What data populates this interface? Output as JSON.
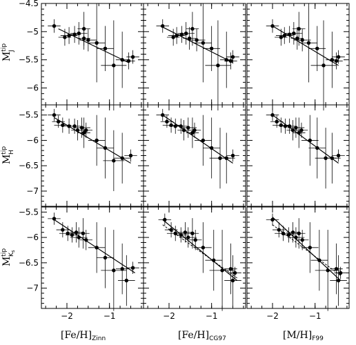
{
  "figure": {
    "x_label_sub_text": [
      "Zinn",
      "CG97",
      "F99"
    ],
    "y_label_sup": "tip",
    "x_ticks": [
      -2,
      -1
    ],
    "y_axis_min": -7.5,
    "y_axis_max": -4.5
  },
  "chart_data": [
    {
      "type": "scatter",
      "row": 0,
      "col": 0,
      "xlabel": "[Fe/H]Zinn",
      "ylabel": "M_J^tip",
      "xlim": [
        -2.6,
        -0.2
      ],
      "ylim": [
        -6.3,
        -4.5
      ],
      "y_ticks": [
        -4.5,
        -5,
        -5.5,
        -6
      ],
      "fit": [
        [
          -2.2,
          -4.95
        ],
        [
          -0.55,
          -5.55
        ]
      ],
      "points": [
        {
          "x": -2.3,
          "y": -4.9,
          "xerr": 0.15,
          "yerr": 0.12
        },
        {
          "x": -2.05,
          "y": -5.1,
          "xerr": 0.15,
          "yerr": 0.15
        },
        {
          "x": -1.95,
          "y": -5.07,
          "xerr": 0.2,
          "yerr": 0.15
        },
        {
          "x": -1.82,
          "y": -5.05,
          "xerr": 0.15,
          "yerr": 0.15
        },
        {
          "x": -1.72,
          "y": -5.03,
          "xerr": 0.2,
          "yerr": 0.2
        },
        {
          "x": -1.6,
          "y": -5.12,
          "xerr": 0.15,
          "yerr": 0.2
        },
        {
          "x": -1.6,
          "y": -4.95,
          "xerr": 0.15,
          "yerr": 0.3
        },
        {
          "x": -1.5,
          "y": -5.15,
          "xerr": 0.2,
          "yerr": 0.2
        },
        {
          "x": -1.3,
          "y": -5.2,
          "xerr": 0.2,
          "yerr": 0.7
        },
        {
          "x": -1.1,
          "y": -5.3,
          "xerr": 0.2,
          "yerr": 0.4
        },
        {
          "x": -0.9,
          "y": -5.6,
          "xerr": 0.3,
          "yerr": 0.8
        },
        {
          "x": -0.7,
          "y": -5.5,
          "xerr": 0.15,
          "yerr": 0.5
        },
        {
          "x": -0.55,
          "y": -5.52,
          "xerr": 0.15,
          "yerr": 0.15
        },
        {
          "x": -0.45,
          "y": -5.45,
          "xerr": 0.15,
          "yerr": 0.12
        }
      ]
    },
    {
      "type": "scatter",
      "row": 0,
      "col": 1,
      "xlabel": "[Fe/H]CG97",
      "ylabel": "M_J^tip",
      "xlim": [
        -2.6,
        -0.2
      ],
      "ylim": [
        -6.3,
        -4.5
      ],
      "y_ticks": [
        -4.5,
        -5,
        -5.5,
        -6
      ],
      "fit": [
        [
          -2.2,
          -4.9
        ],
        [
          -0.5,
          -5.55
        ]
      ],
      "points": [
        {
          "x": -2.15,
          "y": -4.9,
          "xerr": 0.15,
          "yerr": 0.12
        },
        {
          "x": -1.9,
          "y": -5.1,
          "xerr": 0.15,
          "yerr": 0.15
        },
        {
          "x": -1.82,
          "y": -5.07,
          "xerr": 0.2,
          "yerr": 0.15
        },
        {
          "x": -1.7,
          "y": -5.05,
          "xerr": 0.15,
          "yerr": 0.15
        },
        {
          "x": -1.6,
          "y": -5.03,
          "xerr": 0.2,
          "yerr": 0.2
        },
        {
          "x": -1.52,
          "y": -5.12,
          "xerr": 0.15,
          "yerr": 0.2
        },
        {
          "x": -1.45,
          "y": -4.95,
          "xerr": 0.15,
          "yerr": 0.3
        },
        {
          "x": -1.35,
          "y": -5.15,
          "xerr": 0.2,
          "yerr": 0.2
        },
        {
          "x": -1.2,
          "y": -5.2,
          "xerr": 0.2,
          "yerr": 0.7
        },
        {
          "x": -1.0,
          "y": -5.3,
          "xerr": 0.2,
          "yerr": 0.4
        },
        {
          "x": -0.85,
          "y": -5.6,
          "xerr": 0.3,
          "yerr": 0.8
        },
        {
          "x": -0.65,
          "y": -5.5,
          "xerr": 0.15,
          "yerr": 0.5
        },
        {
          "x": -0.55,
          "y": -5.52,
          "xerr": 0.15,
          "yerr": 0.15
        },
        {
          "x": -0.5,
          "y": -5.45,
          "xerr": 0.15,
          "yerr": 0.12
        }
      ]
    },
    {
      "type": "scatter",
      "row": 0,
      "col": 2,
      "xlabel": "[M/H]F99",
      "ylabel": "M_J^tip",
      "xlim": [
        -2.6,
        -0.2
      ],
      "ylim": [
        -6.3,
        -4.5
      ],
      "y_ticks": [
        -4.5,
        -5,
        -5.5,
        -6
      ],
      "fit": [
        [
          -2.0,
          -4.9
        ],
        [
          -0.45,
          -5.6
        ]
      ],
      "points": [
        {
          "x": -2.0,
          "y": -4.9,
          "xerr": 0.15,
          "yerr": 0.12
        },
        {
          "x": -1.8,
          "y": -5.1,
          "xerr": 0.15,
          "yerr": 0.15
        },
        {
          "x": -1.72,
          "y": -5.07,
          "xerr": 0.2,
          "yerr": 0.15
        },
        {
          "x": -1.6,
          "y": -5.05,
          "xerr": 0.15,
          "yerr": 0.15
        },
        {
          "x": -1.5,
          "y": -5.03,
          "xerr": 0.2,
          "yerr": 0.2
        },
        {
          "x": -1.42,
          "y": -5.12,
          "xerr": 0.15,
          "yerr": 0.2
        },
        {
          "x": -1.38,
          "y": -4.95,
          "xerr": 0.15,
          "yerr": 0.3
        },
        {
          "x": -1.3,
          "y": -5.15,
          "xerr": 0.2,
          "yerr": 0.2
        },
        {
          "x": -1.15,
          "y": -5.2,
          "xerr": 0.2,
          "yerr": 0.7
        },
        {
          "x": -0.95,
          "y": -5.3,
          "xerr": 0.2,
          "yerr": 0.4
        },
        {
          "x": -0.8,
          "y": -5.6,
          "xerr": 0.3,
          "yerr": 0.8
        },
        {
          "x": -0.6,
          "y": -5.5,
          "xerr": 0.15,
          "yerr": 0.5
        },
        {
          "x": -0.5,
          "y": -5.52,
          "xerr": 0.15,
          "yerr": 0.15
        },
        {
          "x": -0.45,
          "y": -5.45,
          "xerr": 0.15,
          "yerr": 0.12
        }
      ]
    },
    {
      "type": "scatter",
      "row": 1,
      "col": 0,
      "xlabel": "[Fe/H]Zinn",
      "ylabel": "M_H^tip",
      "xlim": [
        -2.6,
        -0.2
      ],
      "ylim": [
        -7.3,
        -5.3
      ],
      "y_ticks": [
        -5.5,
        -6,
        -6.5,
        -7
      ],
      "fit": [
        [
          -2.3,
          -5.55
        ],
        [
          -0.5,
          -6.45
        ]
      ],
      "points": [
        {
          "x": -2.3,
          "y": -5.5,
          "xerr": 0.15,
          "yerr": 0.12
        },
        {
          "x": -2.2,
          "y": -5.63,
          "xerr": 0.15,
          "yerr": 0.12
        },
        {
          "x": -2.1,
          "y": -5.7,
          "xerr": 0.2,
          "yerr": 0.15
        },
        {
          "x": -1.95,
          "y": -5.72,
          "xerr": 0.15,
          "yerr": 0.15
        },
        {
          "x": -1.82,
          "y": -5.72,
          "xerr": 0.15,
          "yerr": 0.15
        },
        {
          "x": -1.75,
          "y": -5.8,
          "xerr": 0.15,
          "yerr": 0.2
        },
        {
          "x": -1.65,
          "y": -5.75,
          "xerr": 0.2,
          "yerr": 0.2
        },
        {
          "x": -1.6,
          "y": -5.85,
          "xerr": 0.15,
          "yerr": 0.3
        },
        {
          "x": -1.55,
          "y": -5.8,
          "xerr": 0.15,
          "yerr": 0.15
        },
        {
          "x": -1.3,
          "y": -6.0,
          "xerr": 0.2,
          "yerr": 0.5
        },
        {
          "x": -1.1,
          "y": -6.15,
          "xerr": 0.2,
          "yerr": 0.6
        },
        {
          "x": -0.9,
          "y": -6.4,
          "xerr": 0.25,
          "yerr": 0.6
        },
        {
          "x": -0.7,
          "y": -6.35,
          "xerr": 0.2,
          "yerr": 0.5
        },
        {
          "x": -0.5,
          "y": -6.3,
          "xerr": 0.15,
          "yerr": 0.12
        }
      ]
    },
    {
      "type": "scatter",
      "row": 1,
      "col": 1,
      "xlabel": "[Fe/H]CG97",
      "ylabel": "M_H^tip",
      "xlim": [
        -2.6,
        -0.2
      ],
      "ylim": [
        -7.3,
        -5.3
      ],
      "y_ticks": [
        -5.5,
        -6,
        -6.5,
        -7
      ],
      "fit": [
        [
          -2.15,
          -5.5
        ],
        [
          -0.5,
          -6.45
        ]
      ],
      "points": [
        {
          "x": -2.15,
          "y": -5.5,
          "xerr": 0.15,
          "yerr": 0.12
        },
        {
          "x": -2.05,
          "y": -5.63,
          "xerr": 0.15,
          "yerr": 0.12
        },
        {
          "x": -1.95,
          "y": -5.7,
          "xerr": 0.2,
          "yerr": 0.15
        },
        {
          "x": -1.85,
          "y": -5.72,
          "xerr": 0.15,
          "yerr": 0.15
        },
        {
          "x": -1.72,
          "y": -5.72,
          "xerr": 0.15,
          "yerr": 0.15
        },
        {
          "x": -1.65,
          "y": -5.8,
          "xerr": 0.15,
          "yerr": 0.2
        },
        {
          "x": -1.55,
          "y": -5.75,
          "xerr": 0.2,
          "yerr": 0.2
        },
        {
          "x": -1.45,
          "y": -5.85,
          "xerr": 0.15,
          "yerr": 0.3
        },
        {
          "x": -1.4,
          "y": -5.8,
          "xerr": 0.15,
          "yerr": 0.15
        },
        {
          "x": -1.2,
          "y": -6.0,
          "xerr": 0.2,
          "yerr": 0.5
        },
        {
          "x": -1.0,
          "y": -6.15,
          "xerr": 0.2,
          "yerr": 0.6
        },
        {
          "x": -0.8,
          "y": -6.35,
          "xerr": 0.25,
          "yerr": 0.6
        },
        {
          "x": -0.65,
          "y": -6.35,
          "xerr": 0.2,
          "yerr": 0.5
        },
        {
          "x": -0.5,
          "y": -6.3,
          "xerr": 0.15,
          "yerr": 0.12
        }
      ]
    },
    {
      "type": "scatter",
      "row": 1,
      "col": 2,
      "xlabel": "[M/H]F99",
      "ylabel": "M_H^tip",
      "xlim": [
        -2.6,
        -0.2
      ],
      "ylim": [
        -7.3,
        -5.3
      ],
      "y_ticks": [
        -5.5,
        -6,
        -6.5,
        -7
      ],
      "fit": [
        [
          -2.0,
          -5.5
        ],
        [
          -0.45,
          -6.45
        ]
      ],
      "points": [
        {
          "x": -2.0,
          "y": -5.5,
          "xerr": 0.15,
          "yerr": 0.12
        },
        {
          "x": -1.9,
          "y": -5.63,
          "xerr": 0.15,
          "yerr": 0.12
        },
        {
          "x": -1.8,
          "y": -5.7,
          "xerr": 0.2,
          "yerr": 0.15
        },
        {
          "x": -1.7,
          "y": -5.72,
          "xerr": 0.15,
          "yerr": 0.15
        },
        {
          "x": -1.6,
          "y": -5.72,
          "xerr": 0.15,
          "yerr": 0.15
        },
        {
          "x": -1.52,
          "y": -5.8,
          "xerr": 0.15,
          "yerr": 0.2
        },
        {
          "x": -1.45,
          "y": -5.75,
          "xerr": 0.2,
          "yerr": 0.2
        },
        {
          "x": -1.38,
          "y": -5.85,
          "xerr": 0.15,
          "yerr": 0.3
        },
        {
          "x": -1.32,
          "y": -5.8,
          "xerr": 0.15,
          "yerr": 0.15
        },
        {
          "x": -1.12,
          "y": -6.0,
          "xerr": 0.2,
          "yerr": 0.5
        },
        {
          "x": -0.95,
          "y": -6.15,
          "xerr": 0.2,
          "yerr": 0.6
        },
        {
          "x": -0.75,
          "y": -6.35,
          "xerr": 0.25,
          "yerr": 0.6
        },
        {
          "x": -0.6,
          "y": -6.35,
          "xerr": 0.2,
          "yerr": 0.5
        },
        {
          "x": -0.45,
          "y": -6.3,
          "xerr": 0.15,
          "yerr": 0.12
        }
      ]
    },
    {
      "type": "scatter",
      "row": 2,
      "col": 0,
      "xlabel": "[Fe/H]Zinn",
      "ylabel": "M_Ks^tip",
      "xlim": [
        -2.6,
        -0.2
      ],
      "ylim": [
        -7.4,
        -5.4
      ],
      "y_ticks": [
        -5.5,
        -6,
        -6.5,
        -7
      ],
      "fit": [
        [
          -2.3,
          -5.65
        ],
        [
          -0.4,
          -6.7
        ]
      ],
      "points": [
        {
          "x": -2.3,
          "y": -5.63,
          "xerr": 0.15,
          "yerr": 0.12
        },
        {
          "x": -2.1,
          "y": -5.85,
          "xerr": 0.15,
          "yerr": 0.15
        },
        {
          "x": -1.98,
          "y": -5.92,
          "xerr": 0.2,
          "yerr": 0.15
        },
        {
          "x": -1.88,
          "y": -5.95,
          "xerr": 0.15,
          "yerr": 0.15
        },
        {
          "x": -1.78,
          "y": -5.9,
          "xerr": 0.15,
          "yerr": 0.2
        },
        {
          "x": -1.72,
          "y": -6.0,
          "xerr": 0.2,
          "yerr": 0.2
        },
        {
          "x": -1.62,
          "y": -5.92,
          "xerr": 0.15,
          "yerr": 0.3
        },
        {
          "x": -1.55,
          "y": -6.05,
          "xerr": 0.15,
          "yerr": 0.2
        },
        {
          "x": -1.3,
          "y": -6.2,
          "xerr": 0.2,
          "yerr": 0.5
        },
        {
          "x": -1.1,
          "y": -6.4,
          "xerr": 0.2,
          "yerr": 0.6
        },
        {
          "x": -0.9,
          "y": -6.65,
          "xerr": 0.3,
          "yerr": 0.8
        },
        {
          "x": -0.7,
          "y": -6.62,
          "xerr": 0.15,
          "yerr": 0.5
        },
        {
          "x": -0.6,
          "y": -6.85,
          "xerr": 0.2,
          "yerr": 0.5
        },
        {
          "x": -0.45,
          "y": -6.6,
          "xerr": 0.15,
          "yerr": 0.12
        }
      ]
    },
    {
      "type": "scatter",
      "row": 2,
      "col": 1,
      "xlabel": "[Fe/H]CG97",
      "ylabel": "M_Ks^tip",
      "xlim": [
        -2.6,
        -0.2
      ],
      "ylim": [
        -7.4,
        -5.4
      ],
      "y_ticks": [
        -5.5,
        -6,
        -6.5,
        -7
      ],
      "fit": [
        [
          -2.15,
          -5.65
        ],
        [
          -0.4,
          -6.85
        ]
      ],
      "fit2": [
        [
          -2.15,
          -5.75
        ],
        [
          -0.4,
          -6.8
        ]
      ],
      "points": [
        {
          "x": -2.1,
          "y": -5.65,
          "xerr": 0.15,
          "yerr": 0.12
        },
        {
          "x": -1.95,
          "y": -5.85,
          "xerr": 0.15,
          "yerr": 0.15
        },
        {
          "x": -1.85,
          "y": -5.92,
          "xerr": 0.2,
          "yerr": 0.15
        },
        {
          "x": -1.72,
          "y": -5.95,
          "xerr": 0.15,
          "yerr": 0.15
        },
        {
          "x": -1.62,
          "y": -5.9,
          "xerr": 0.15,
          "yerr": 0.2
        },
        {
          "x": -1.55,
          "y": -6.0,
          "xerr": 0.2,
          "yerr": 0.2
        },
        {
          "x": -1.45,
          "y": -5.92,
          "xerr": 0.15,
          "yerr": 0.3
        },
        {
          "x": -1.38,
          "y": -6.05,
          "xerr": 0.15,
          "yerr": 0.2
        },
        {
          "x": -1.2,
          "y": -6.2,
          "xerr": 0.2,
          "yerr": 0.5
        },
        {
          "x": -0.95,
          "y": -6.45,
          "xerr": 0.2,
          "yerr": 0.6
        },
        {
          "x": -0.75,
          "y": -6.65,
          "xerr": 0.3,
          "yerr": 0.8
        },
        {
          "x": -0.55,
          "y": -6.62,
          "xerr": 0.15,
          "yerr": 0.5
        },
        {
          "x": -0.5,
          "y": -6.85,
          "xerr": 0.2,
          "yerr": 0.5
        },
        {
          "x": -0.45,
          "y": -6.7,
          "xerr": 0.15,
          "yerr": 0.12
        }
      ]
    },
    {
      "type": "scatter",
      "row": 2,
      "col": 2,
      "xlabel": "[M/H]F99",
      "ylabel": "M_Ks^tip",
      "xlim": [
        -2.6,
        -0.2
      ],
      "ylim": [
        -7.4,
        -5.4
      ],
      "y_ticks": [
        -5.5,
        -6,
        -6.5,
        -7
      ],
      "fit": [
        [
          -2.0,
          -5.6
        ],
        [
          -0.4,
          -6.85
        ]
      ],
      "fit2": [
        [
          -2.0,
          -5.75
        ],
        [
          -0.4,
          -6.75
        ]
      ],
      "points": [
        {
          "x": -2.0,
          "y": -5.65,
          "xerr": 0.15,
          "yerr": 0.12
        },
        {
          "x": -1.85,
          "y": -5.85,
          "xerr": 0.15,
          "yerr": 0.15
        },
        {
          "x": -1.75,
          "y": -5.92,
          "xerr": 0.2,
          "yerr": 0.15
        },
        {
          "x": -1.62,
          "y": -5.95,
          "xerr": 0.15,
          "yerr": 0.15
        },
        {
          "x": -1.52,
          "y": -5.9,
          "xerr": 0.15,
          "yerr": 0.2
        },
        {
          "x": -1.45,
          "y": -6.0,
          "xerr": 0.2,
          "yerr": 0.2
        },
        {
          "x": -1.38,
          "y": -5.92,
          "xerr": 0.15,
          "yerr": 0.3
        },
        {
          "x": -1.3,
          "y": -6.05,
          "xerr": 0.15,
          "yerr": 0.2
        },
        {
          "x": -1.12,
          "y": -6.2,
          "xerr": 0.2,
          "yerr": 0.5
        },
        {
          "x": -0.9,
          "y": -6.45,
          "xerr": 0.2,
          "yerr": 0.6
        },
        {
          "x": -0.7,
          "y": -6.65,
          "xerr": 0.3,
          "yerr": 0.8
        },
        {
          "x": -0.5,
          "y": -6.62,
          "xerr": 0.15,
          "yerr": 0.5
        },
        {
          "x": -0.45,
          "y": -6.85,
          "xerr": 0.2,
          "yerr": 0.5
        },
        {
          "x": -0.4,
          "y": -6.7,
          "xerr": 0.15,
          "yerr": 0.12
        }
      ]
    }
  ]
}
